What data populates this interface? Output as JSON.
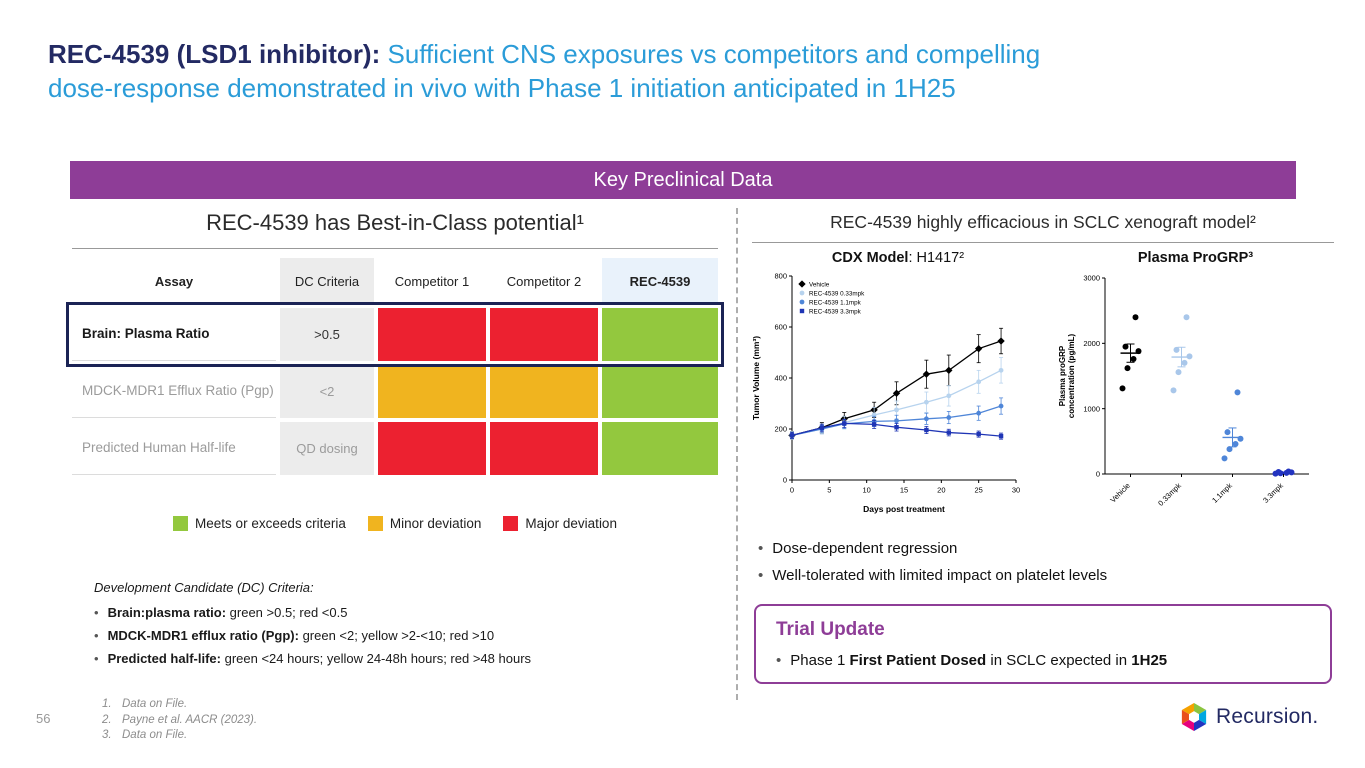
{
  "colors": {
    "navy": "#232a63",
    "blue": "#2b9cd8",
    "purple": "#8e3d97",
    "green": "#93c83e",
    "yellow": "#f0b41f",
    "red": "#ec2130",
    "criteria_bg": "#ececec",
    "rec_col_bg": "#e9f2fb",
    "highlight_border": "#1b2355"
  },
  "title": {
    "bold": "REC-4539 (LSD1 inhibitor)",
    "sep": ": ",
    "line1_rest": "Sufficient CNS exposures vs competitors and compelling",
    "line2": "dose-response demonstrated in vivo with Phase 1 initiation anticipated in 1H25"
  },
  "banner": {
    "label": "Key Preclinical Data"
  },
  "left": {
    "heading": "REC-4539 has Best-in-Class potential¹",
    "table": {
      "headers": [
        "Assay",
        "DC Criteria",
        "Competitor 1",
        "Competitor 2",
        "REC-4539"
      ],
      "rows": [
        {
          "assay": "Brain: Plasma Ratio",
          "criteria": ">0.5",
          "cells": [
            "red",
            "red",
            "green"
          ],
          "highlight": true,
          "emphasis": true
        },
        {
          "assay": "MDCK-MDR1 Efflux Ratio (Pgp)",
          "criteria": "<2",
          "cells": [
            "yellow",
            "yellow",
            "green"
          ],
          "highlight": false,
          "emphasis": false
        },
        {
          "assay": "Predicted Human Half-life",
          "criteria": "QD dosing",
          "cells": [
            "red",
            "red",
            "green"
          ],
          "highlight": false,
          "emphasis": false
        }
      ]
    },
    "legend": [
      {
        "color": "green",
        "label": "Meets or exceeds criteria"
      },
      {
        "color": "yellow",
        "label": "Minor deviation"
      },
      {
        "color": "red",
        "label": "Major deviation"
      }
    ],
    "dc_criteria": {
      "heading": "Development Candidate (DC) Criteria:",
      "items": [
        {
          "bold": "Brain:plasma ratio:",
          "rest": " green >0.5; red <0.5"
        },
        {
          "bold": "MDCK-MDR1 efflux ratio (Pgp):",
          "rest": " green <2; yellow >2-<10; red >10"
        },
        {
          "bold": "Predicted half-life:",
          "rest": " green <24 hours; yellow 24-48h hours; red >48 hours"
        }
      ]
    },
    "footnotes": [
      {
        "num": "1.",
        "text": "Data on File."
      },
      {
        "num": "2.",
        "text": "Payne et al. AACR (2023)."
      },
      {
        "num": "3.",
        "text": "Data on File."
      }
    ],
    "page_number": "56"
  },
  "right": {
    "heading": "REC-4539 highly efficacious in SCLC xenograft model²",
    "bullets": [
      "Dose-dependent regression",
      "Well-tolerated with limited impact on platelet levels"
    ],
    "trial_update": {
      "heading": "Trial Update",
      "segments": [
        {
          "text": "Phase 1 ",
          "bold": false
        },
        {
          "text": "First Patient Dosed",
          "bold": true
        },
        {
          "text": " in SCLC expected in ",
          "bold": false
        },
        {
          "text": "1H25",
          "bold": true
        }
      ]
    }
  },
  "logo": {
    "icon": "recursion-hexagon-icon",
    "text": "Recursion."
  },
  "chart_data": [
    {
      "type": "line",
      "title_bold": "CDX Model",
      "title_rest": ": H1417²",
      "xlabel": "Days post treatment",
      "ylabel": "Tumor Volume (mm³)",
      "xlim": [
        0,
        30
      ],
      "ylim": [
        0,
        800
      ],
      "xticks": [
        0,
        5,
        10,
        15,
        20,
        25,
        30
      ],
      "yticks": [
        0,
        200,
        400,
        600,
        800
      ],
      "x": [
        0,
        4,
        7,
        11,
        14,
        18,
        21,
        25,
        28
      ],
      "legend_position": "top-left",
      "series": [
        {
          "name": "Vehicle",
          "color": "#000000",
          "marker": "diamond",
          "values": [
            175,
            205,
            240,
            275,
            340,
            415,
            430,
            515,
            545
          ],
          "errors": [
            15,
            20,
            25,
            30,
            45,
            55,
            60,
            55,
            50
          ]
        },
        {
          "name": "REC-4539 0.33mpk",
          "color": "#b7d3ee",
          "marker": "circle",
          "values": [
            175,
            200,
            225,
            255,
            275,
            305,
            330,
            385,
            430
          ],
          "errors": [
            15,
            20,
            25,
            30,
            35,
            40,
            40,
            45,
            50
          ]
        },
        {
          "name": "REC-4539 1.1mpk",
          "color": "#4f86d8",
          "marker": "circle",
          "values": [
            175,
            200,
            220,
            230,
            232,
            240,
            245,
            262,
            290
          ],
          "errors": [
            12,
            15,
            18,
            20,
            22,
            22,
            24,
            28,
            32
          ]
        },
        {
          "name": "REC-4539 3.3mpk",
          "color": "#1f35b5",
          "marker": "square",
          "values": [
            175,
            205,
            222,
            218,
            207,
            196,
            186,
            180,
            172
          ],
          "errors": [
            12,
            14,
            16,
            16,
            15,
            14,
            13,
            12,
            12
          ]
        }
      ]
    },
    {
      "type": "scatter",
      "title": "Plasma ProGRP³",
      "ylabel_line1": "Plasma proGRP",
      "ylabel_line2": "concentration (pg/mL)",
      "ylim": [
        0,
        3000
      ],
      "yticks": [
        0,
        1000,
        2000,
        3000
      ],
      "groups": [
        {
          "name": "Vehicle",
          "color": "#000000",
          "points": [
            1310,
            1620,
            1760,
            1880,
            1950,
            2400
          ],
          "mean": 1850,
          "sem": 140
        },
        {
          "name": "0.33mpk",
          "color": "#a9c7ea",
          "points": [
            1280,
            1560,
            1700,
            1800,
            1900,
            2400
          ],
          "mean": 1790,
          "sem": 150
        },
        {
          "name": "1.1mpk",
          "color": "#4f86d8",
          "points": [
            240,
            380,
            460,
            540,
            640,
            1250
          ],
          "mean": 560,
          "sem": 145
        },
        {
          "name": "3.3mpk",
          "color": "#2334c0",
          "points": [
            5,
            12,
            18,
            24,
            30,
            38
          ],
          "mean": 21,
          "sem": 8
        }
      ]
    }
  ]
}
